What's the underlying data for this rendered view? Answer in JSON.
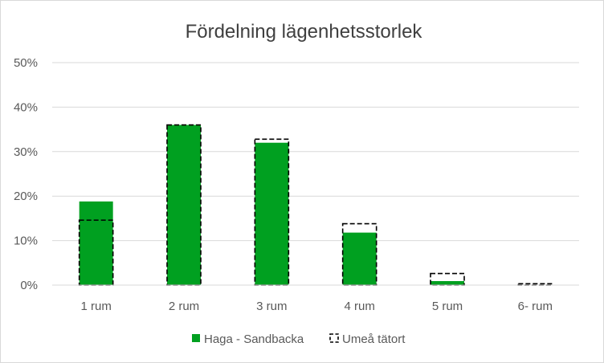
{
  "chart_data": {
    "type": "bar",
    "title": "Fördelning lägenhetsstorlek",
    "xlabel": "",
    "ylabel": "",
    "categories": [
      "1 rum",
      "2 rum",
      "3 rum",
      "4 rum",
      "5 rum",
      "6- rum"
    ],
    "series": [
      {
        "name": "Haga - Sandbacka",
        "values": [
          18.8,
          36.0,
          32.0,
          11.8,
          0.9,
          0.0
        ],
        "color": "#00a020",
        "style": "filled-bar"
      },
      {
        "name": "Umeå tätort",
        "values": [
          14.6,
          36.0,
          32.8,
          13.8,
          2.6,
          0.3
        ],
        "color": "#000000",
        "style": "dashed-outline-bar"
      }
    ],
    "ylim": [
      0,
      50
    ],
    "yticks": [
      "0%",
      "10%",
      "20%",
      "30%",
      "40%",
      "50%"
    ],
    "grid": true,
    "legend_position": "bottom"
  }
}
